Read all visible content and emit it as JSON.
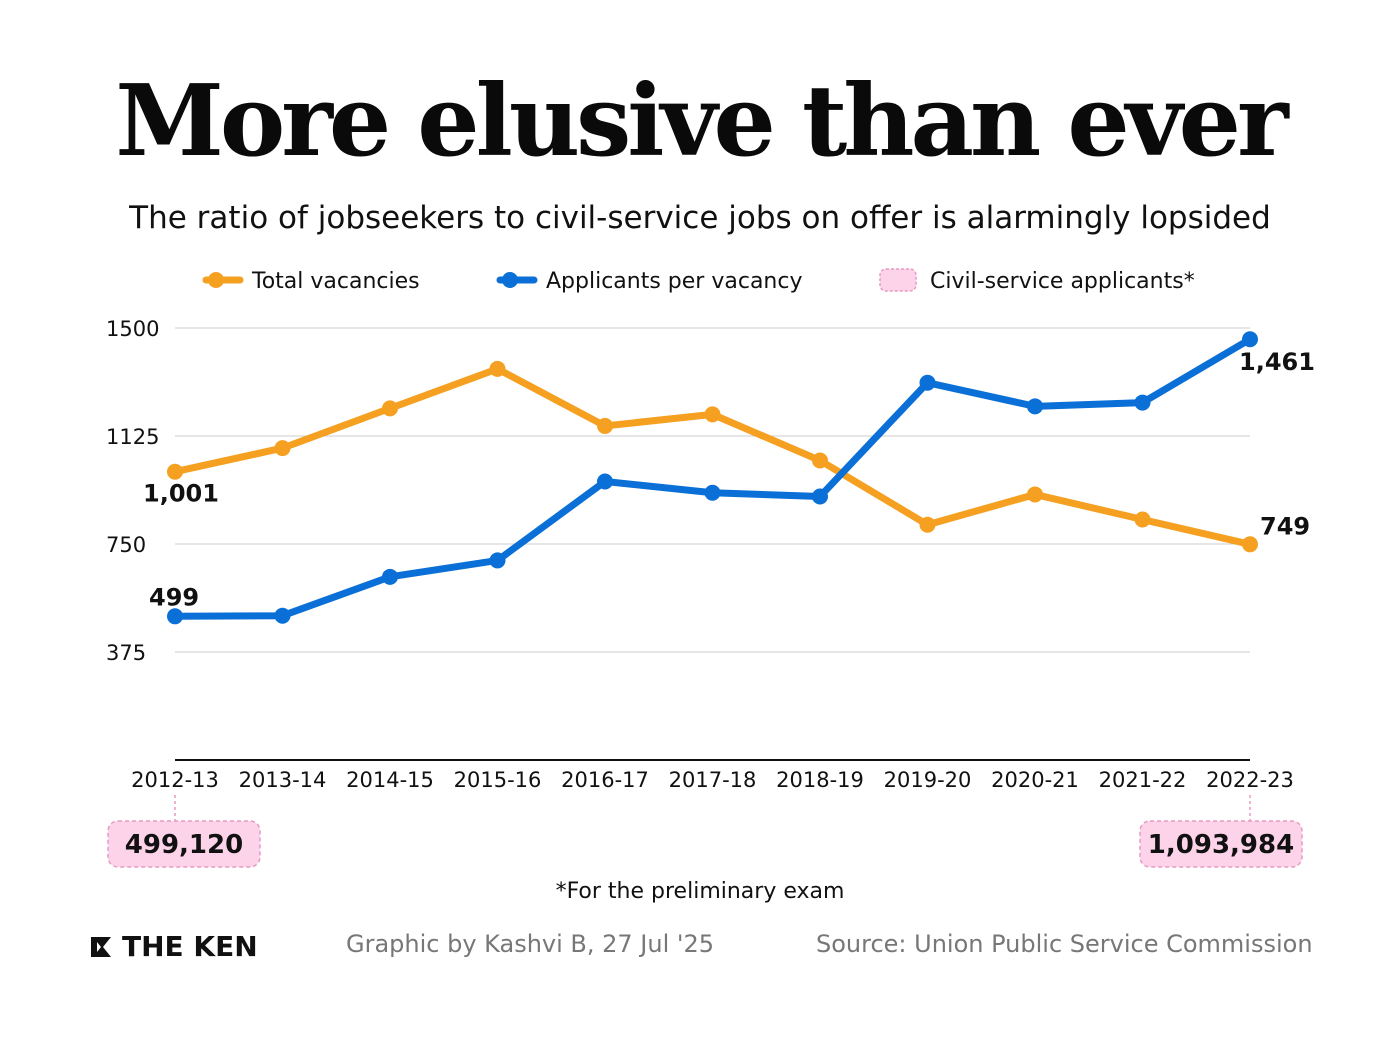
{
  "header": {
    "title": "More elusive than ever",
    "subtitle": "The ratio of jobseekers to civil-service jobs on offer is alarmingly lopsided"
  },
  "colors": {
    "vacancies": "#f5a020",
    "applicants": "#0a6fd6",
    "badge_fill": "#fcd3e8",
    "badge_border": "#e89ac4",
    "grid": "#cccccc"
  },
  "chart_data": {
    "type": "line",
    "title": "More elusive than ever",
    "categories": [
      "2012-13",
      "2013-14",
      "2014-15",
      "2015-16",
      "2016-17",
      "2017-18",
      "2018-19",
      "2019-20",
      "2020-21",
      "2021-22",
      "2022-23"
    ],
    "series": [
      {
        "name": "Total vacancies",
        "color_key": "vacancies",
        "values": [
          1001,
          1083,
          1221,
          1358,
          1160,
          1200,
          1040,
          817,
          922,
          835,
          749
        ]
      },
      {
        "name": "Applicants per vacancy",
        "color_key": "applicants",
        "values": [
          499,
          501,
          636,
          693,
          967,
          928,
          915,
          1310,
          1228,
          1241,
          1461
        ]
      }
    ],
    "legend": [
      "Total vacancies",
      "Applicants per vacancy",
      "Civil-service applicants*"
    ],
    "yticks": [
      1500,
      1125,
      750,
      375
    ],
    "ylim": [
      0,
      1500
    ],
    "grid": true,
    "value_labels": [
      {
        "series": 0,
        "index": 0,
        "text": "1,001"
      },
      {
        "series": 0,
        "index": 10,
        "text": "749"
      },
      {
        "series": 1,
        "index": 0,
        "text": "499"
      },
      {
        "series": 1,
        "index": 10,
        "text": "1,461"
      }
    ],
    "badges": [
      {
        "index": 0,
        "text": "499,120"
      },
      {
        "index": 10,
        "text": "1,093,984"
      }
    ],
    "footnote": "*For the preliminary exam"
  },
  "footer": {
    "logo_text": "THE KEN",
    "credit": "Graphic by Kashvi B, 27 Jul '25",
    "source": "Source: Union Public Service Commission"
  }
}
